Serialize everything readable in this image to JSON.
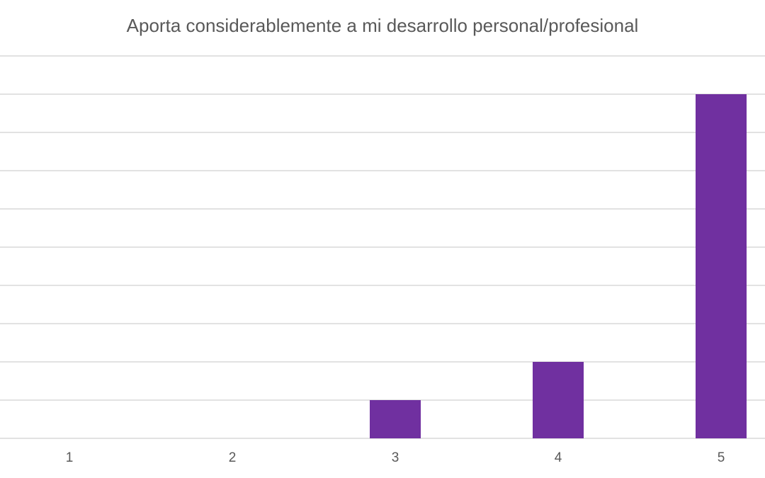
{
  "chart_data": {
    "type": "bar",
    "title": "Aporta considerablemente a mi desarrollo personal/profesional",
    "categories": [
      "1",
      "2",
      "3",
      "4",
      "5"
    ],
    "values": [
      0,
      0,
      1,
      2,
      9
    ],
    "color": "#7030a0",
    "ylim": [
      0,
      10
    ],
    "yticks": [
      0,
      1,
      2,
      3,
      4,
      5,
      6,
      7,
      8,
      9,
      10
    ],
    "grid": true
  }
}
